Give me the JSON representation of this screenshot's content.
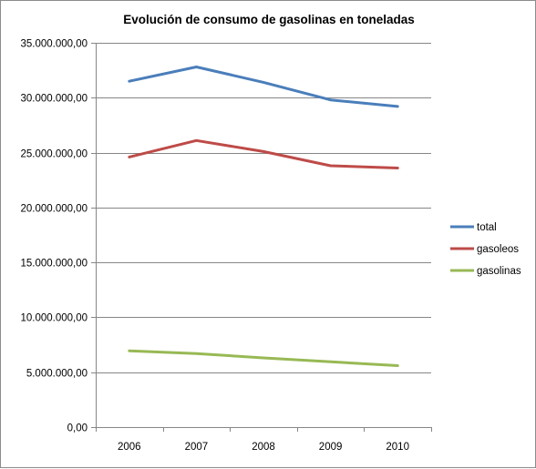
{
  "chart_data": {
    "type": "line",
    "title": "Evolución de consumo de gasolinas en toneladas",
    "xlabel": "",
    "ylabel": "",
    "categories": [
      "2006",
      "2007",
      "2008",
      "2009",
      "2010"
    ],
    "ylim": [
      0,
      35000000
    ],
    "y_ticks": [
      0,
      5000000,
      10000000,
      15000000,
      20000000,
      25000000,
      30000000,
      35000000
    ],
    "y_tick_labels": [
      "0,00",
      "5.000.000,00",
      "10.000.000,00",
      "15.000.000,00",
      "20.000.000,00",
      "25.000.000,00",
      "30.000.000,00",
      "35.000.000,00"
    ],
    "grid": true,
    "legend_position": "right",
    "series": [
      {
        "name": "total",
        "color": "#4a7ebb",
        "values": [
          31500000,
          32800000,
          31400000,
          29800000,
          29200000
        ]
      },
      {
        "name": "gasoleos",
        "color": "#be4b48",
        "values": [
          24600000,
          26100000,
          25100000,
          23800000,
          23600000
        ]
      },
      {
        "name": "gasolinas",
        "color": "#98b954",
        "values": [
          6950000,
          6700000,
          6300000,
          5950000,
          5600000
        ]
      }
    ]
  }
}
